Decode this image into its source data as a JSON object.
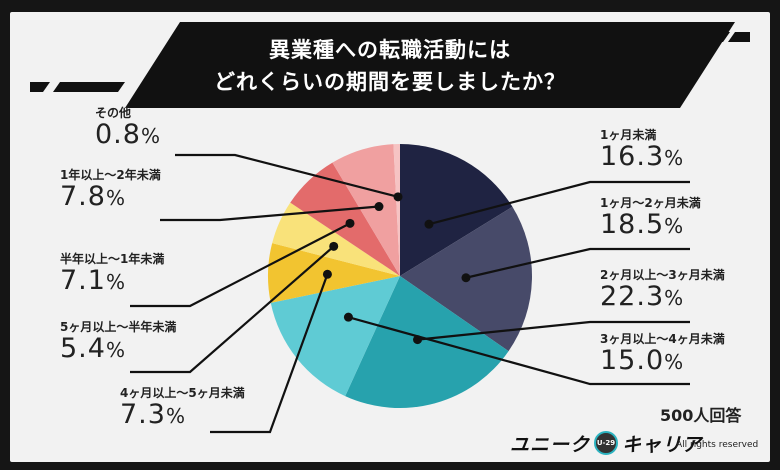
{
  "title_lines": [
    "異業種への転職活動には",
    "どれくらいの期間を要しましたか？"
  ],
  "respondents": "500人回答",
  "brand": {
    "left": "ユニーク",
    "badge": "U-29",
    "right": "キャリア"
  },
  "rights": "All rights reserved",
  "colors": {
    "frame": "#151515",
    "panel": "#f2f2f2",
    "title_bg": "#111111",
    "leader": "#111111"
  },
  "chart_data": {
    "type": "pie",
    "start": "12 o'clock",
    "direction": "clockwise",
    "unit": "%",
    "slices": [
      {
        "name": "1ヶ月未満",
        "value": 16.3,
        "display": "16.3",
        "color": "#1f2342"
      },
      {
        "name": "1ヶ月〜2ヶ月未満",
        "value": 18.5,
        "display": "18.5",
        "color": "#474a69"
      },
      {
        "name": "2ヶ月以上〜3ヶ月未満",
        "value": 22.3,
        "display": "22.3",
        "color": "#27a2ad"
      },
      {
        "name": "3ヶ月以上〜4ヶ月未満",
        "value": 15.0,
        "display": "15.0",
        "color": "#5fcbd4"
      },
      {
        "name": "4ヶ月以上〜5ヶ月未満",
        "value": 7.3,
        "display": "7.3",
        "color": "#f2c430"
      },
      {
        "name": "5ヶ月以上〜半年未満",
        "value": 5.4,
        "display": "5.4",
        "color": "#f9e27a"
      },
      {
        "name": "半年以上〜1年未満",
        "value": 7.1,
        "display": "7.1",
        "color": "#e36b6b"
      },
      {
        "name": "1年以上〜2年未満",
        "value": 7.8,
        "display": "7.8",
        "color": "#f0a0a0"
      },
      {
        "name": "その他",
        "value": 0.8,
        "display": "0.8",
        "color": "#f6c3c3"
      }
    ]
  }
}
